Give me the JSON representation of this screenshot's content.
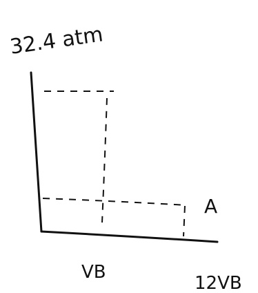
{
  "labels": {
    "pressure": "32.4 atm",
    "point": "A",
    "volume_1": "VB",
    "volume_2": "12VB"
  }
}
